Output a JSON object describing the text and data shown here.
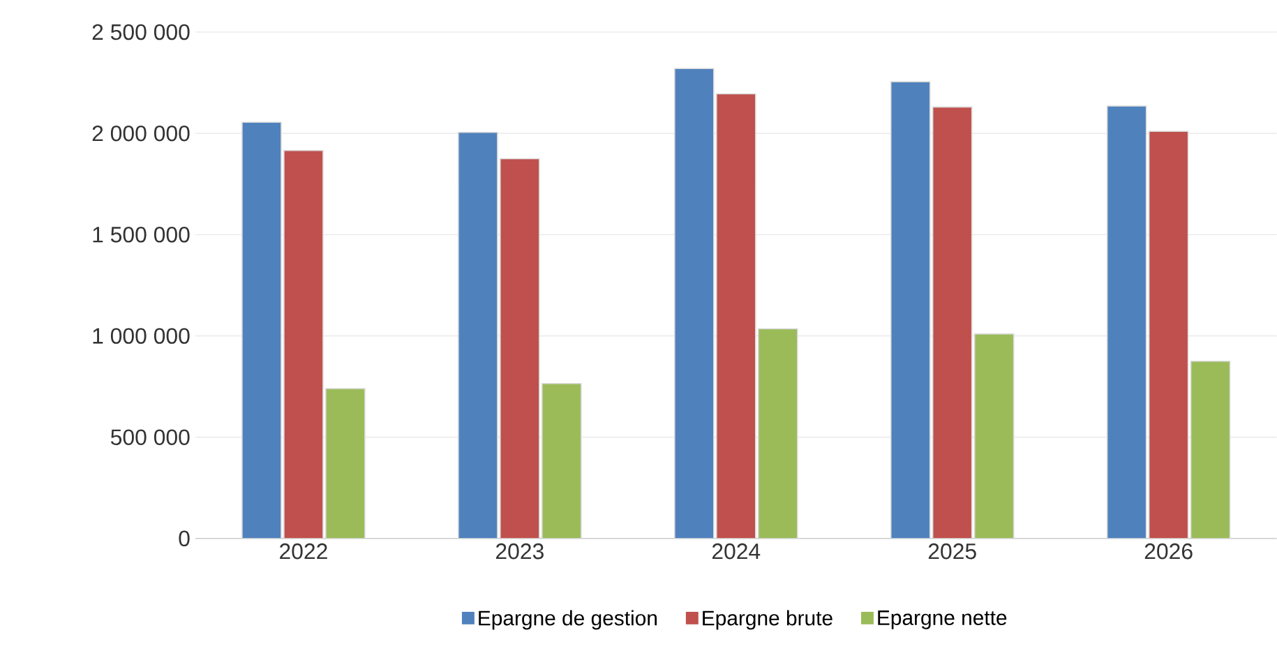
{
  "chart_data": {
    "type": "bar",
    "categories": [
      "2022",
      "2023",
      "2024",
      "2025",
      "2026"
    ],
    "series": [
      {
        "name": "Epargne de gestion",
        "color": "#4f81bd",
        "values": [
          2055000,
          2005000,
          2320000,
          2255000,
          2135000
        ]
      },
      {
        "name": "Epargne brute",
        "color": "#c0504d",
        "values": [
          1915000,
          1875000,
          2195000,
          2130000,
          2010000
        ]
      },
      {
        "name": "Epargne nette",
        "color": "#9bbb59",
        "values": [
          740000,
          765000,
          1035000,
          1010000,
          875000
        ]
      }
    ],
    "ylim": [
      0,
      2500000
    ],
    "yticks": [
      {
        "value": 0,
        "label": "0"
      },
      {
        "value": 500000,
        "label": "500 000"
      },
      {
        "value": 1000000,
        "label": "1 000 000"
      },
      {
        "value": 1500000,
        "label": "1 500 000"
      },
      {
        "value": 2000000,
        "label": "2 000 000"
      },
      {
        "value": 2500000,
        "label": "2 500 000"
      }
    ],
    "grid": "y",
    "legend": "bottom"
  }
}
